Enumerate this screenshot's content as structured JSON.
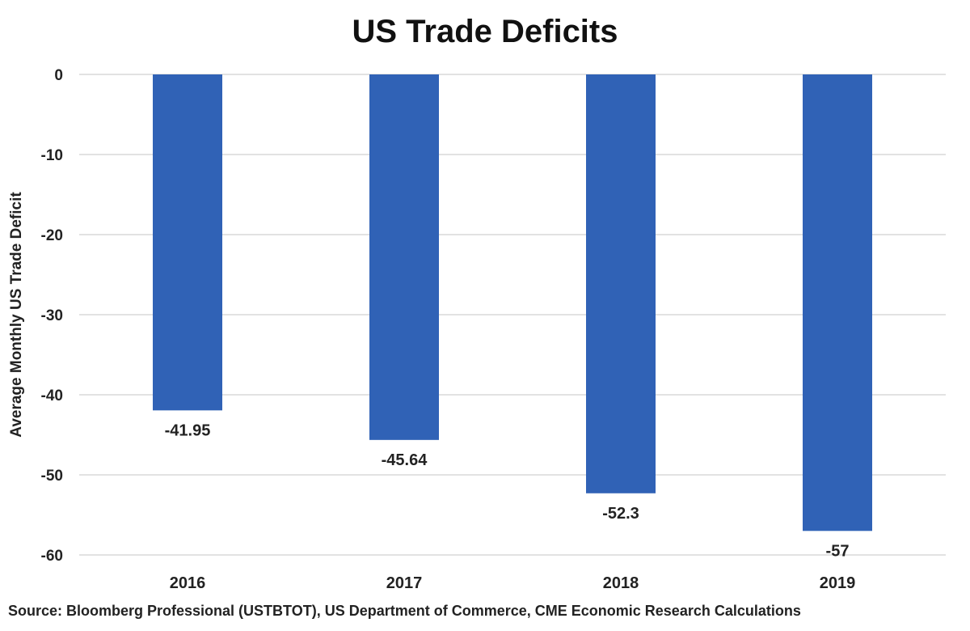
{
  "chart_data": {
    "type": "bar",
    "title": "US Trade Deficits",
    "xlabel": "",
    "ylabel": "Average Monthly US Trade Deficit",
    "categories": [
      "2016",
      "2017",
      "2018",
      "2019"
    ],
    "values": [
      -41.95,
      -45.64,
      -52.3,
      -57
    ],
    "value_labels": [
      "-41.95",
      "-45.64",
      "-52.3",
      "-57"
    ],
    "ylim": [
      -60,
      0
    ],
    "yticks": [
      0,
      -10,
      -20,
      -30,
      -40,
      -50,
      -60
    ],
    "ytick_labels": [
      "0",
      "-10",
      "-20",
      "-30",
      "-40",
      "-50",
      "-60"
    ],
    "grid": true,
    "bar_color": "#3062B6",
    "source": "Source: Bloomberg Professional (USTBTOT), US Department of Commerce, CME Economic Research Calculations"
  }
}
